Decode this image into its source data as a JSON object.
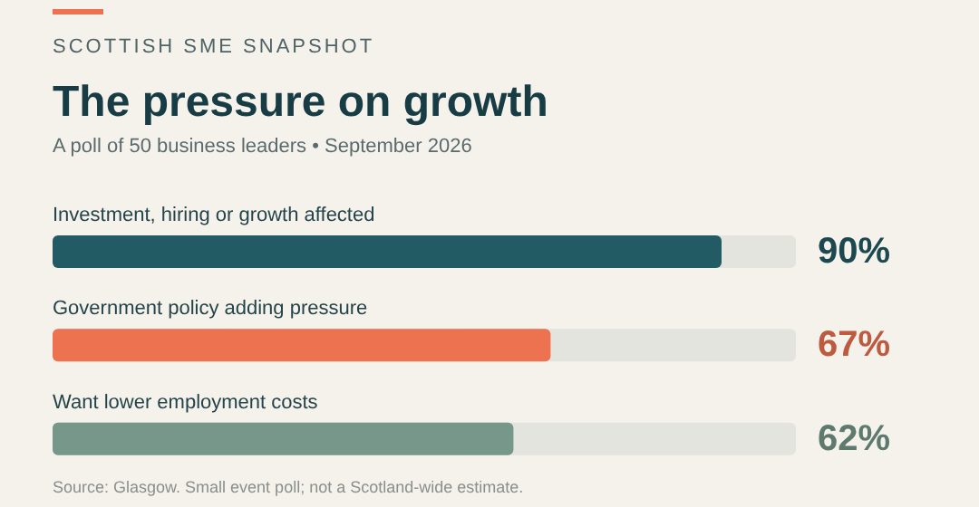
{
  "chart_data": {
    "type": "bar",
    "orientation": "horizontal",
    "title": "The pressure on growth",
    "subtitle": "A poll of 50 business leaders • September 2026",
    "categories": [
      "Investment, hiring or growth affected",
      "Government policy adding pressure",
      "Want lower employment costs"
    ],
    "values": [
      90,
      67,
      62
    ],
    "colors": [
      "#235b64",
      "#ec7250",
      "#76978a"
    ],
    "value_labels": [
      "90%",
      "67%",
      "62%"
    ],
    "xlim": [
      0,
      100
    ],
    "tick_labels": false,
    "grid": false,
    "legend": false,
    "annotations": [
      "SCOTTISH SME SNAPSHOT",
      "Source: Glasgow. Small event poll; not a Scotland-wide estimate."
    ]
  }
}
